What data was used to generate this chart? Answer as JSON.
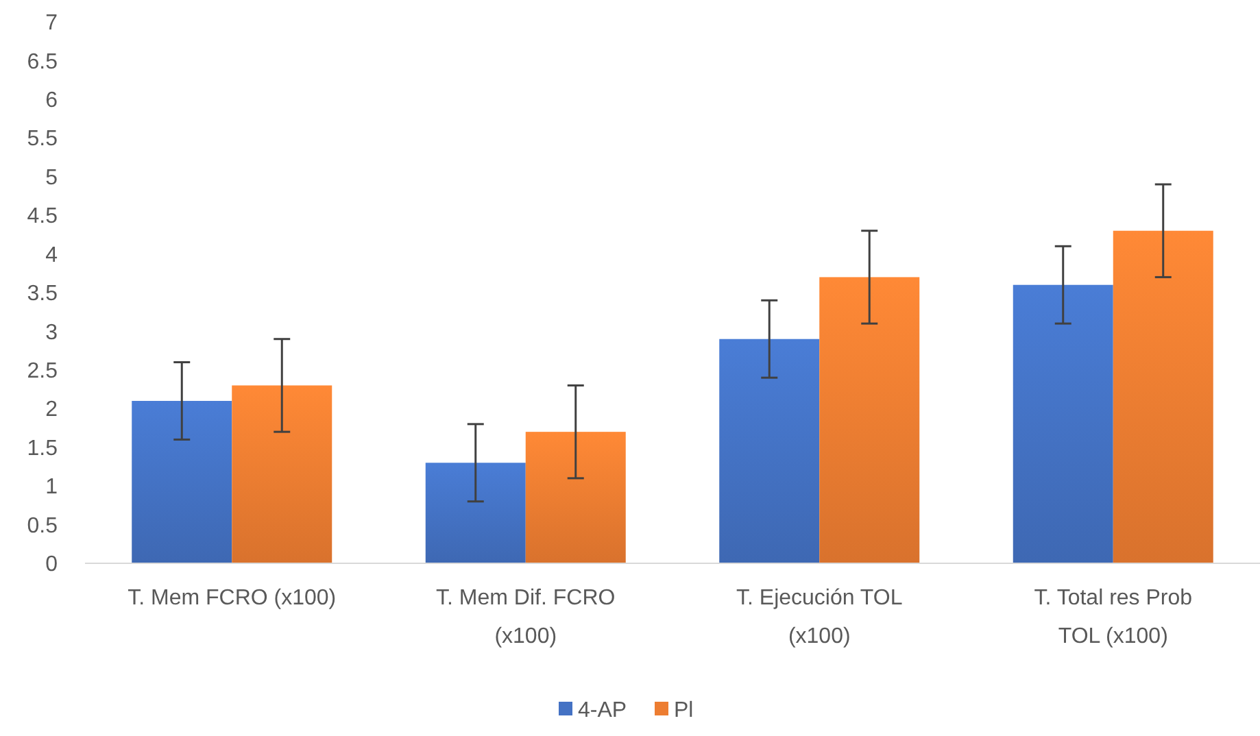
{
  "chart_data": {
    "type": "bar",
    "categories": [
      "T. Mem FCRO (x100)",
      "T. Mem Dif. FCRO (x100)",
      "T. Ejecución TOL (x100)",
      "T. Total res Prob TOL (x100)"
    ],
    "series": [
      {
        "name": "4-AP",
        "color": "#4472c4",
        "values": [
          2.1,
          1.3,
          2.9,
          3.6
        ],
        "errors": [
          0.5,
          0.5,
          0.5,
          0.5
        ]
      },
      {
        "name": "Pl",
        "color": "#ed7d31",
        "values": [
          2.3,
          1.7,
          3.7,
          4.3
        ],
        "errors": [
          0.6,
          0.6,
          0.6,
          0.6
        ]
      }
    ],
    "ylim": [
      0,
      7
    ],
    "yticks": [
      0,
      0.5,
      1,
      1.5,
      2,
      2.5,
      3,
      3.5,
      4,
      4.5,
      5,
      5.5,
      6,
      6.5,
      7
    ],
    "grid": false,
    "legend": "bottom"
  }
}
